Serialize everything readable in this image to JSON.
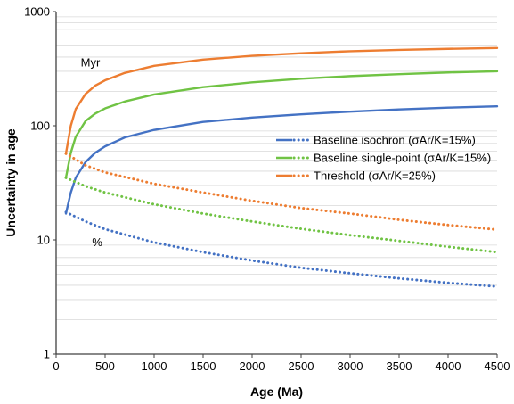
{
  "chart_data": {
    "type": "line",
    "xlabel": "Age (Ma)",
    "ylabel": "Uncertainty in age",
    "xlim": [
      0,
      4500
    ],
    "ylim": [
      1,
      1000
    ],
    "yscale": "log",
    "grid": "horizontal minor lines",
    "legend_position": "center-right",
    "x_ticks": [
      "0",
      "500",
      "1000",
      "1500",
      "2000",
      "2500",
      "3000",
      "3500",
      "4000",
      "4500"
    ],
    "y_ticks": [
      "1",
      "10",
      "100",
      "1000"
    ],
    "annotations": [
      {
        "text": "Myr",
        "x": 350,
        "y": 330
      },
      {
        "text": "%",
        "x": 420,
        "y": 8.8
      }
    ],
    "series": [
      {
        "name": "Baseline isochron (σAr/K=15%)",
        "color": "#4472c4",
        "legend_style": "dotted",
        "group": "Myr",
        "x": [
          100,
          150,
          200,
          300,
          400,
          500,
          700,
          1000,
          1500,
          2000,
          2500,
          3000,
          3500,
          4000,
          4500
        ],
        "y": [
          17,
          26,
          35,
          48,
          58,
          66,
          79,
          92,
          108,
          118,
          126,
          133,
          139,
          144,
          148
        ]
      },
      {
        "name": "Baseline single-point (σAr/K=15%)",
        "color": "#70c344",
        "legend_style": "dotted",
        "group": "Myr",
        "x": [
          100,
          150,
          200,
          300,
          400,
          500,
          700,
          1000,
          1500,
          2000,
          2500,
          3000,
          3500,
          4000,
          4500
        ],
        "y": [
          35,
          58,
          80,
          110,
          128,
          142,
          163,
          188,
          218,
          240,
          258,
          272,
          283,
          293,
          300
        ]
      },
      {
        "name": "Threshold (σAr/K=25%)",
        "color": "#ed7d31",
        "legend_style": "dotted",
        "group": "Myr",
        "x": [
          100,
          150,
          200,
          300,
          400,
          500,
          700,
          1000,
          1500,
          2000,
          2500,
          3000,
          3500,
          4000,
          4500
        ],
        "y": [
          57,
          100,
          140,
          190,
          225,
          250,
          290,
          335,
          380,
          410,
          432,
          450,
          462,
          472,
          480
        ]
      },
      {
        "name": "Baseline isochron (σAr/K=15%)",
        "color": "#4472c4",
        "line_style": "dotted",
        "group": "%",
        "x": [
          100,
          300,
          500,
          1000,
          1500,
          2000,
          2500,
          3000,
          3500,
          4000,
          4500
        ],
        "y": [
          17.5,
          14.5,
          12.4,
          9.5,
          7.8,
          6.6,
          5.7,
          5.1,
          4.6,
          4.2,
          3.9
        ]
      },
      {
        "name": "Baseline single-point (σAr/K=15%)",
        "color": "#70c344",
        "line_style": "dotted",
        "group": "%",
        "x": [
          100,
          300,
          500,
          1000,
          1500,
          2000,
          2500,
          3000,
          3500,
          4000,
          4500
        ],
        "y": [
          35,
          29.5,
          26,
          20.5,
          17,
          14.5,
          12.5,
          11,
          9.8,
          8.7,
          7.8
        ]
      },
      {
        "name": "Threshold (σAr/K=25%)",
        "color": "#ed7d31",
        "line_style": "dotted",
        "group": "%",
        "x": [
          100,
          300,
          500,
          1000,
          1500,
          2000,
          2500,
          3000,
          3500,
          4000,
          4500
        ],
        "y": [
          57,
          45,
          39,
          31,
          26,
          22,
          19,
          17,
          15,
          13.5,
          12.3
        ]
      }
    ]
  }
}
